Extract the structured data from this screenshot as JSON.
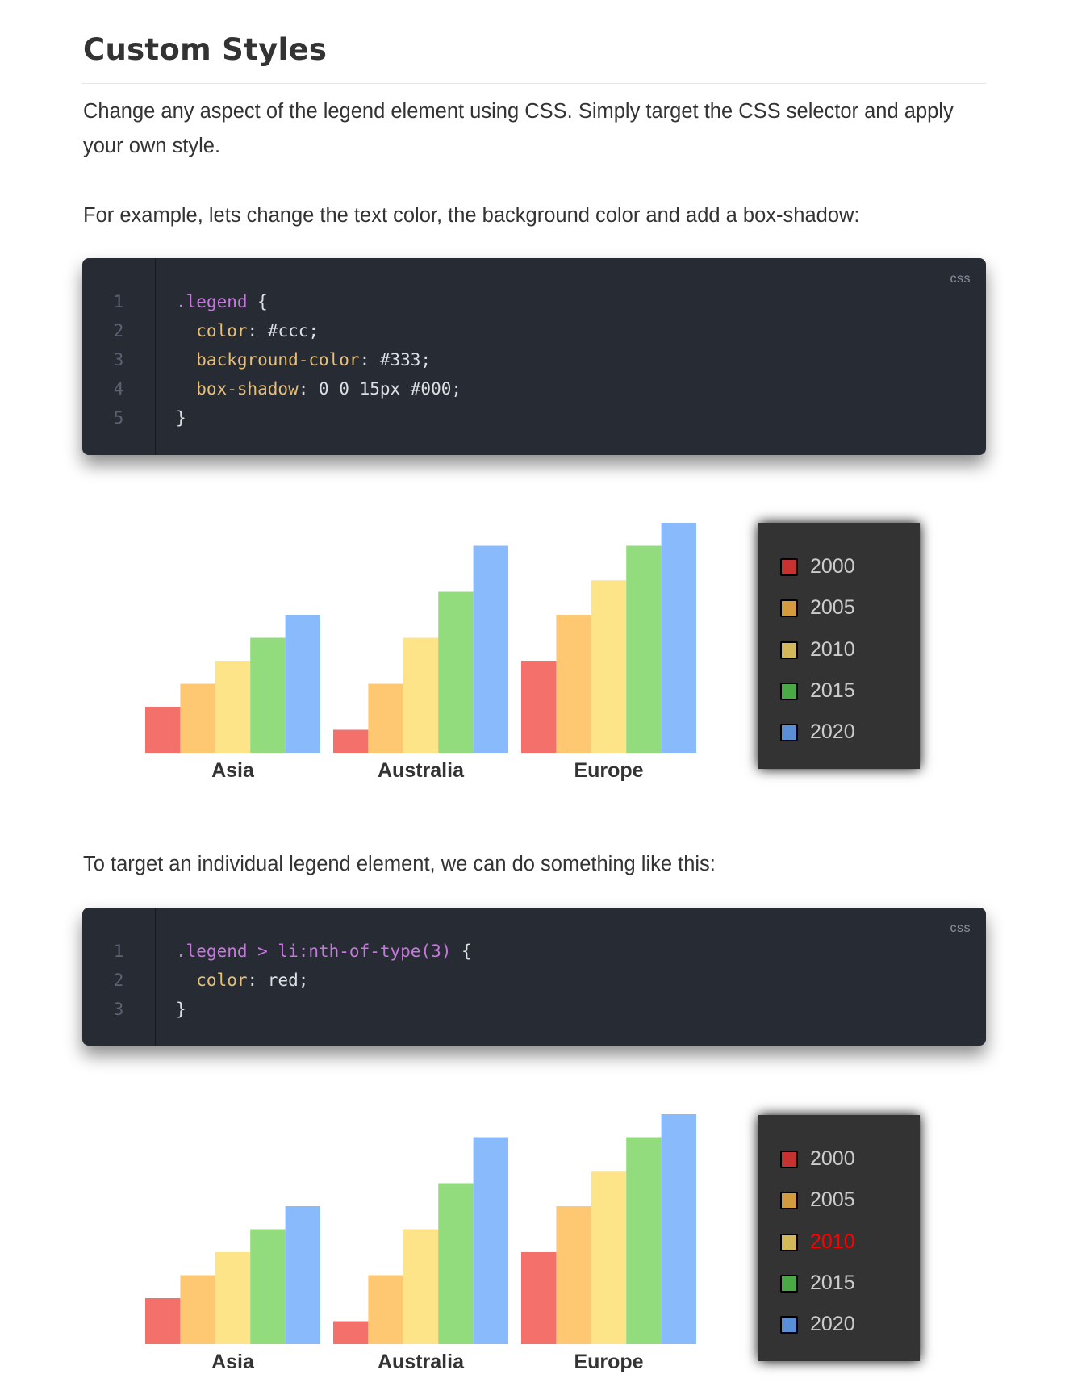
{
  "heading": "Custom Styles",
  "paragraphs": {
    "intro_line1": "Change any aspect of the legend element using CSS. Simply target the CSS selector and apply",
    "intro_line2": "your own style.",
    "example": "For example, lets change the text color, the background color and add a box-shadow:",
    "individual": "To target an individual legend element, we can do something like this:"
  },
  "code_blocks": [
    {
      "language": "css",
      "lines": [
        {
          "number": "1",
          "tokens": [
            {
              "text": ".legend",
              "kind": "sel"
            },
            {
              "text": " {",
              "kind": "txt"
            }
          ]
        },
        {
          "number": "2",
          "tokens": [
            {
              "text": "  color",
              "kind": "prop"
            },
            {
              "text": ": #ccc;",
              "kind": "txt"
            }
          ]
        },
        {
          "number": "3",
          "tokens": [
            {
              "text": "  background-color",
              "kind": "prop"
            },
            {
              "text": ": #333;",
              "kind": "txt"
            }
          ]
        },
        {
          "number": "4",
          "tokens": [
            {
              "text": "  box-shadow",
              "kind": "prop"
            },
            {
              "text": ": 0 0 15px #000;",
              "kind": "txt"
            }
          ]
        },
        {
          "number": "5",
          "tokens": [
            {
              "text": "}",
              "kind": "txt"
            }
          ]
        }
      ]
    },
    {
      "language": "css",
      "lines": [
        {
          "number": "1",
          "tokens": [
            {
              "text": ".legend > li:nth-of-type(3)",
              "kind": "sel"
            },
            {
              "text": " {",
              "kind": "txt"
            }
          ]
        },
        {
          "number": "2",
          "tokens": [
            {
              "text": "  color",
              "kind": "prop"
            },
            {
              "text": ": red;",
              "kind": "txt"
            }
          ]
        },
        {
          "number": "3",
          "tokens": [
            {
              "text": "}",
              "kind": "txt"
            }
          ]
        }
      ]
    }
  ],
  "chart_data": [
    {
      "type": "bar",
      "categories": [
        "Asia",
        "Australia",
        "Europe"
      ],
      "series": [
        {
          "name": "2000",
          "values": [
            2,
            1,
            4
          ],
          "color": "#f4706b"
        },
        {
          "name": "2005",
          "values": [
            3,
            3,
            6
          ],
          "color": "#fdc871"
        },
        {
          "name": "2010",
          "values": [
            4,
            5,
            7.5
          ],
          "color": "#fee488"
        },
        {
          "name": "2015",
          "values": [
            5,
            7,
            9
          ],
          "color": "#92dc7e"
        },
        {
          "name": "2020",
          "values": [
            6,
            9,
            10
          ],
          "color": "#88bafc"
        }
      ],
      "ylim": [
        0,
        10
      ],
      "grid": false,
      "legend": {
        "placement": "right",
        "text_color": "#ccc",
        "background": "#333",
        "highlight_index": null
      }
    },
    {
      "type": "bar",
      "categories": [
        "Asia",
        "Australia",
        "Europe"
      ],
      "series": [
        {
          "name": "2000",
          "values": [
            2,
            1,
            4
          ],
          "color": "#f4706b"
        },
        {
          "name": "2005",
          "values": [
            3,
            3,
            6
          ],
          "color": "#fdc871"
        },
        {
          "name": "2010",
          "values": [
            4,
            5,
            7.5
          ],
          "color": "#fee488"
        },
        {
          "name": "2015",
          "values": [
            5,
            7,
            9
          ],
          "color": "#92dc7e"
        },
        {
          "name": "2020",
          "values": [
            6,
            9,
            10
          ],
          "color": "#88bafc"
        }
      ],
      "ylim": [
        0,
        10
      ],
      "grid": false,
      "legend": {
        "placement": "right",
        "text_color": "#ccc",
        "background": "#333",
        "highlight_index": 2,
        "highlight_color": "red"
      }
    }
  ],
  "legend_swatch_colors": [
    "#c6322f",
    "#d49a3e",
    "#d3b75b",
    "#4aa845",
    "#5a8fd6"
  ]
}
